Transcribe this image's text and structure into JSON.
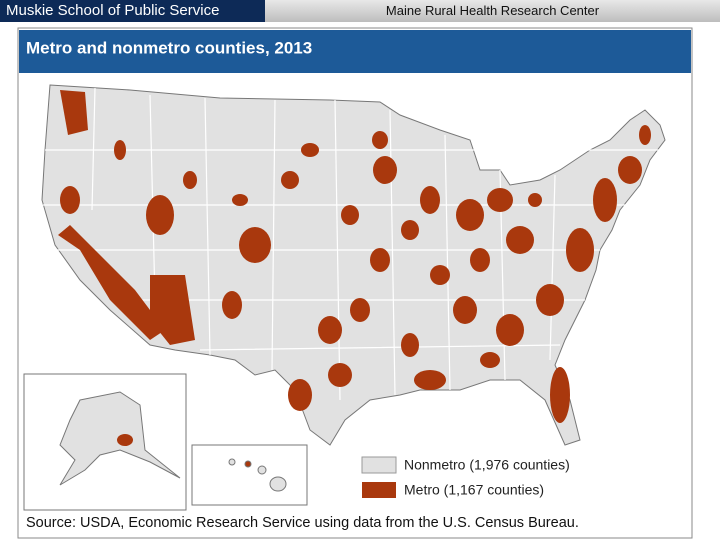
{
  "header": {
    "left": "Muskie School of Public Service",
    "right": "Maine Rural Health Research Center"
  },
  "map": {
    "title": "Metro and nonmetro counties, 2013",
    "legend": {
      "items": [
        {
          "label": "Nonmetro (1,976 counties)"
        },
        {
          "label": "Metro (1,167 counties)"
        }
      ]
    },
    "source": "Source: USDA, Economic Research Service using data from the U.S. Census Bureau."
  }
}
